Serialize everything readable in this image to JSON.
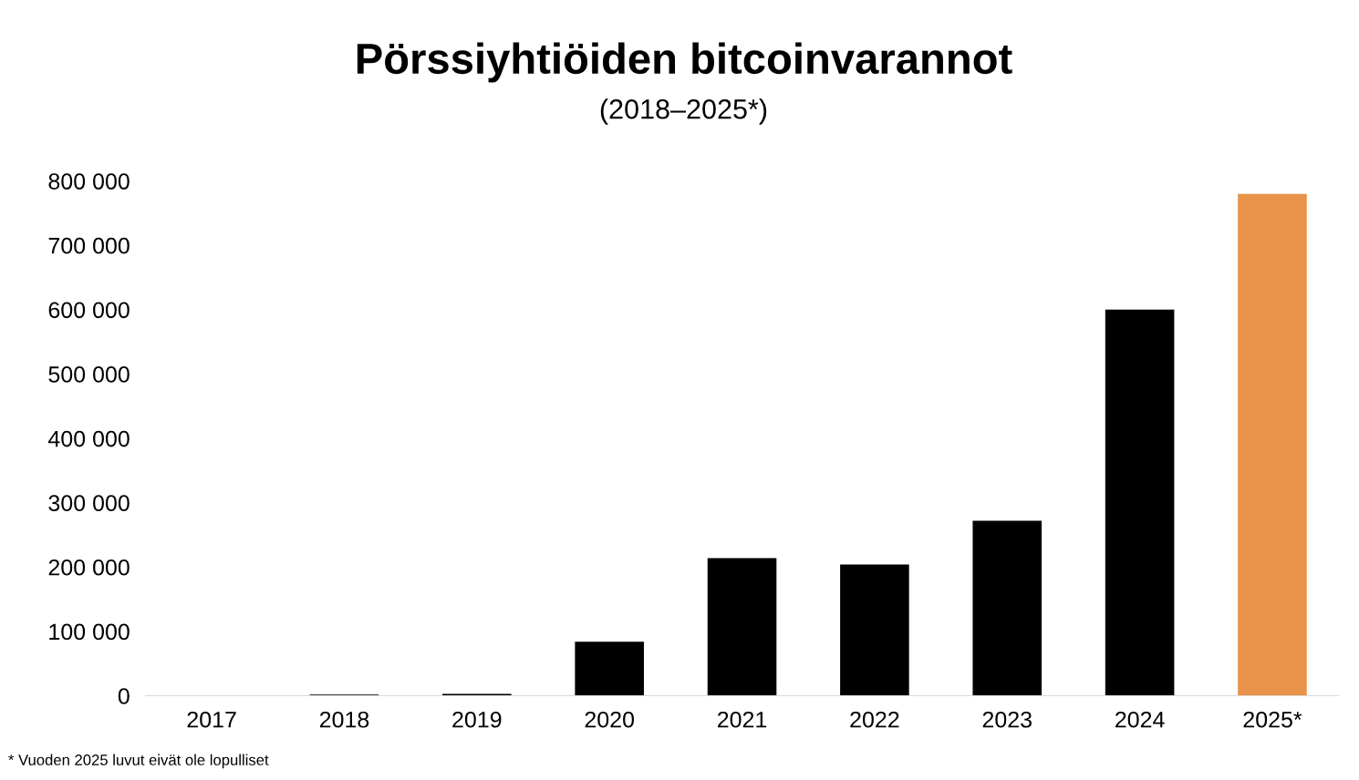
{
  "chart_data": {
    "type": "bar",
    "title": "Pörssiyhtiöiden bitcoinvarannot",
    "subtitle": "(2018–2025*)",
    "categories": [
      "2017",
      "2018",
      "2019",
      "2020",
      "2021",
      "2022",
      "2023",
      "2024",
      "2025*"
    ],
    "values": [
      0,
      2000,
      3000,
      84000,
      214000,
      204000,
      272000,
      600000,
      780000
    ],
    "colors": [
      "#000000",
      "#000000",
      "#000000",
      "#000000",
      "#000000",
      "#000000",
      "#000000",
      "#000000",
      "#e8924a"
    ],
    "ylim": [
      0,
      800000
    ],
    "yticks": [
      {
        "value": 0,
        "label": "0"
      },
      {
        "value": 100000,
        "label": "100 000"
      },
      {
        "value": 200000,
        "label": "200 000"
      },
      {
        "value": 300000,
        "label": "300 000"
      },
      {
        "value": 400000,
        "label": "400 000"
      },
      {
        "value": 500000,
        "label": "500 000"
      },
      {
        "value": 600000,
        "label": "600 000"
      },
      {
        "value": 700000,
        "label": "700 000"
      },
      {
        "value": 800000,
        "label": "800 000"
      }
    ],
    "grid": false,
    "legend": false,
    "annotations": [
      "* Vuoden 2025 luvut eivät ole lopulliset"
    ]
  }
}
